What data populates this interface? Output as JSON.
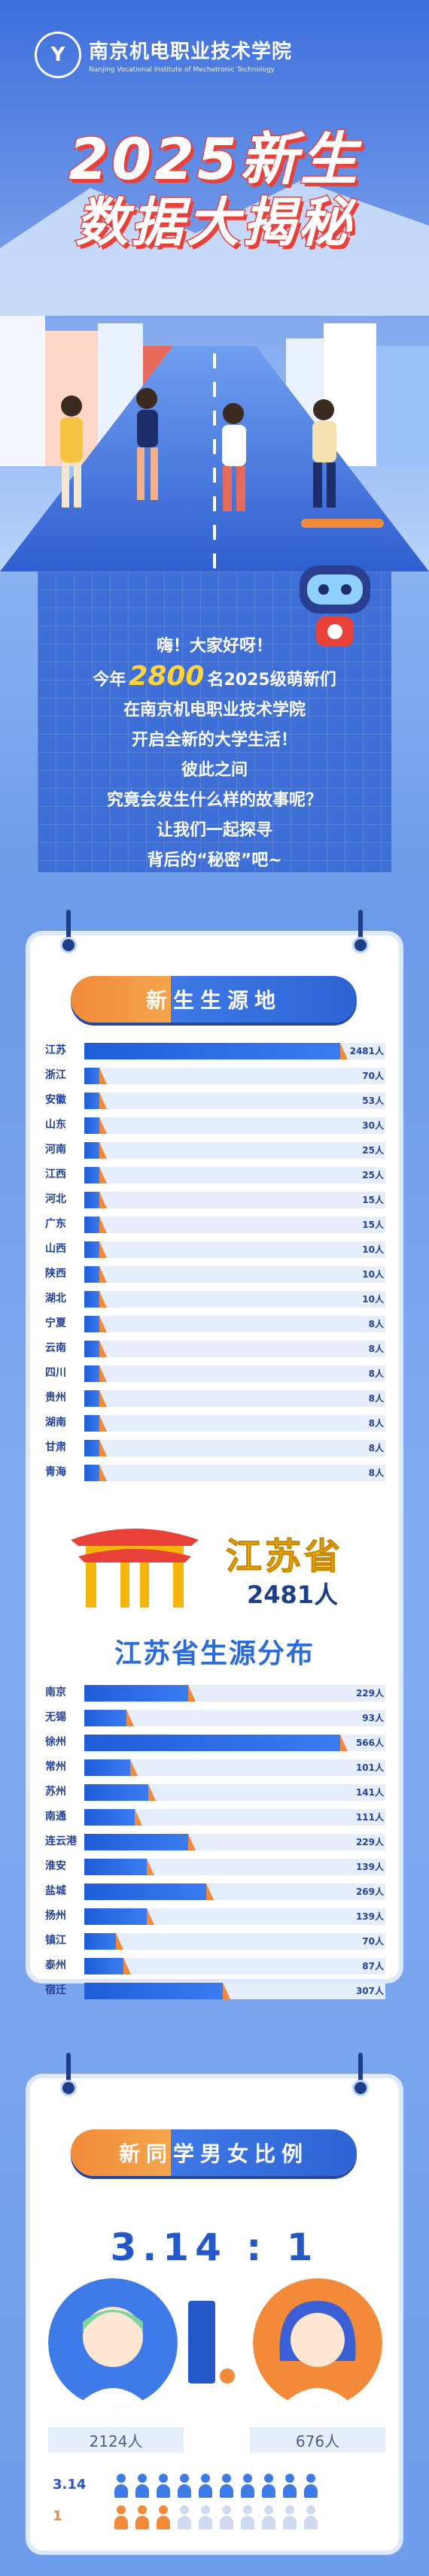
{
  "school": {
    "name_cn": "南京机电职业技术学院",
    "name_en": "Nanjing Vocational Institute of Mechatronic Technology",
    "logo_glyph": "Y"
  },
  "title": {
    "line1": "2025新生",
    "line2": "数据大揭秘"
  },
  "intro": {
    "line1": "嗨！大家好呀！",
    "line2_pre": "今年",
    "line2_num": "2800",
    "line2_post": "名2025级萌新们",
    "line3": "在南京机电职业技术学院",
    "line4": "开启全新的大学生活！",
    "line5": "彼此之间",
    "line6": "究竟会发生什么样的故事呢？",
    "line7": "让我们一起探寻",
    "line8": "背后的“秘密”吧~"
  },
  "sources": {
    "heading": "新生生源地",
    "unit": "人",
    "items": [
      {
        "name": "江苏",
        "value": 2481
      },
      {
        "name": "浙江",
        "value": 70
      },
      {
        "name": "安徽",
        "value": 53
      },
      {
        "name": "山东",
        "value": 30
      },
      {
        "name": "河南",
        "value": 25
      },
      {
        "name": "江西",
        "value": 25
      },
      {
        "name": "河北",
        "value": 15
      },
      {
        "name": "广东",
        "value": 15
      },
      {
        "name": "山西",
        "value": 10
      },
      {
        "name": "陕西",
        "value": 10
      },
      {
        "name": "湖北",
        "value": 10
      },
      {
        "name": "宁夏",
        "value": 8
      },
      {
        "name": "云南",
        "value": 8
      },
      {
        "name": "四川",
        "value": 8
      },
      {
        "name": "贵州",
        "value": 8
      },
      {
        "name": "湖南",
        "value": 8
      },
      {
        "name": "甘肃",
        "value": 8
      },
      {
        "name": "青海",
        "value": 8
      }
    ]
  },
  "jiangsu": {
    "province": "江苏省",
    "total": "2481人",
    "heading": "江苏省生源分布",
    "unit": "人",
    "items": [
      {
        "name": "南京",
        "value": 229
      },
      {
        "name": "无锡",
        "value": 93
      },
      {
        "name": "徐州",
        "value": 566
      },
      {
        "name": "常州",
        "value": 101
      },
      {
        "name": "苏州",
        "value": 141
      },
      {
        "name": "南通",
        "value": 111
      },
      {
        "name": "连云港",
        "value": 229
      },
      {
        "name": "淮安",
        "value": 139
      },
      {
        "name": "盐城",
        "value": 269
      },
      {
        "name": "扬州",
        "value": 139
      },
      {
        "name": "镇江",
        "value": 70
      },
      {
        "name": "泰州",
        "value": 87
      },
      {
        "name": "宿迁",
        "value": 307
      }
    ]
  },
  "gender": {
    "heading": "新同学男女比例",
    "ratio": "3.14 : 1",
    "male_count": "2124人",
    "female_count": "676人",
    "row1_label": "3.14",
    "row2_label": "1",
    "male_color": "#3e7be8",
    "female_color": "#f28a3a",
    "empty_color": "#cfdaf0",
    "row1_filled": 10,
    "row2_filled": 3,
    "icons_per_row": 10
  },
  "colors": {
    "accent_blue": "#2d6ad9",
    "accent_orange": "#f28a3a",
    "title_red": "#e8413a"
  }
}
